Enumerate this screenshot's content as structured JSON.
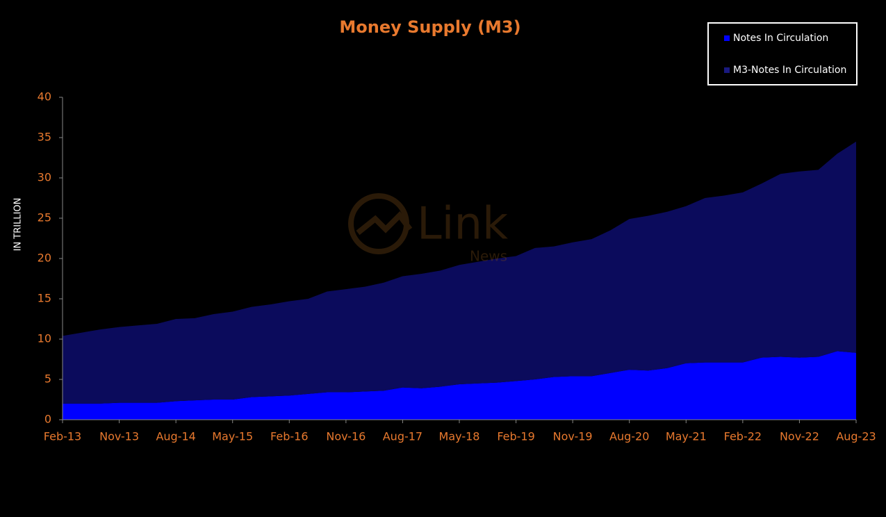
{
  "chart_data": {
    "type": "stacked_area",
    "title": "Money Supply (M3)",
    "y_label": "IN TRILLION",
    "watermark": {
      "brand": "Link",
      "sub": "News"
    },
    "categories": [
      "Feb-13",
      null,
      null,
      "Nov-13",
      null,
      null,
      "Aug-14",
      null,
      null,
      "May-15",
      null,
      null,
      "Feb-16",
      null,
      null,
      "Nov-16",
      null,
      null,
      "Aug-17",
      null,
      null,
      "May-18",
      null,
      null,
      "Feb-19",
      null,
      null,
      "Nov-19",
      null,
      null,
      "Aug-20",
      null,
      null,
      "May-21",
      null,
      null,
      "Feb-22",
      null,
      null,
      "Nov-22",
      null,
      null,
      "Aug-23"
    ],
    "series": [
      {
        "name": "Notes In Circulation",
        "color": "#0000ff",
        "values": [
          2.0,
          2.0,
          2.0,
          2.1,
          2.1,
          2.1,
          2.3,
          2.4,
          2.5,
          2.5,
          2.8,
          2.9,
          3.0,
          3.2,
          3.4,
          3.4,
          3.5,
          3.6,
          4.0,
          3.9,
          4.1,
          4.4,
          4.5,
          4.6,
          4.8,
          5.0,
          5.3,
          5.4,
          5.4,
          5.8,
          6.2,
          6.1,
          6.4,
          7.0,
          7.1,
          7.1,
          7.1,
          7.7,
          7.8,
          7.7,
          7.8,
          8.5,
          8.3
        ]
      },
      {
        "name": "M3-Notes In Circulation",
        "color": "#0b0b5c",
        "values": [
          8.4,
          8.8,
          9.2,
          9.4,
          9.6,
          9.8,
          10.2,
          10.2,
          10.6,
          10.9,
          11.2,
          11.4,
          11.7,
          11.8,
          12.5,
          12.8,
          13.0,
          13.4,
          13.8,
          14.2,
          14.4,
          14.8,
          15.1,
          15.4,
          15.5,
          16.3,
          16.2,
          16.6,
          17.0,
          17.7,
          18.7,
          19.2,
          19.4,
          19.5,
          20.4,
          20.7,
          21.1,
          21.6,
          22.7,
          23.1,
          23.2,
          24.5,
          26.2
        ]
      }
    ],
    "ylim": [
      0,
      40
    ],
    "yticks": [
      0,
      5,
      10,
      15,
      20,
      25,
      30,
      35,
      40
    ],
    "legend": "top-right",
    "grid": false
  }
}
